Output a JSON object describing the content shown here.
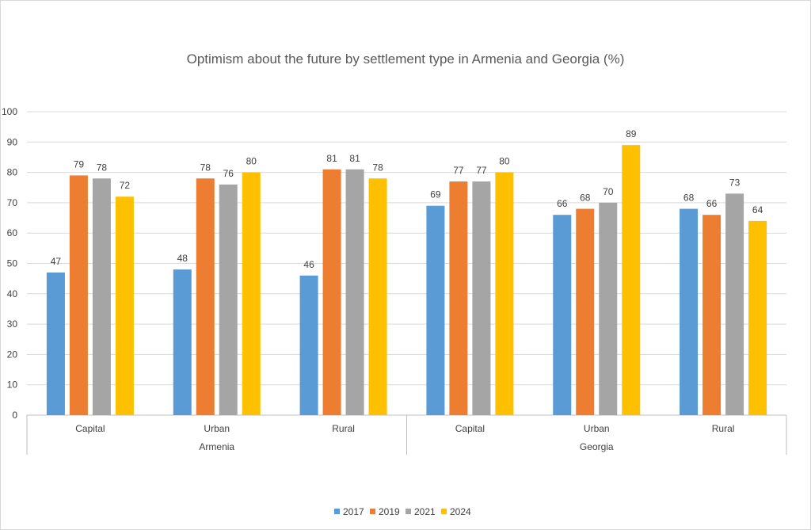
{
  "chart_data": {
    "type": "bar",
    "title": "Optimism about the future by  settlement type in Armenia and Georgia (%)",
    "groups": [
      "Armenia",
      "Georgia"
    ],
    "categories": [
      "Capital",
      "Urban",
      "Rural",
      "Capital",
      "Urban",
      "Rural"
    ],
    "category_groups": [
      "Armenia",
      "Armenia",
      "Armenia",
      "Georgia",
      "Georgia",
      "Georgia"
    ],
    "series": [
      {
        "name": "2017",
        "color": "#5B9BD5",
        "values": [
          47,
          48,
          46,
          69,
          66,
          68
        ]
      },
      {
        "name": "2019",
        "color": "#ED7D31",
        "values": [
          79,
          78,
          81,
          77,
          68,
          66
        ]
      },
      {
        "name": "2021",
        "color": "#A5A5A5",
        "values": [
          78,
          76,
          81,
          77,
          70,
          73
        ]
      },
      {
        "name": "2024",
        "color": "#FFC000",
        "values": [
          72,
          80,
          78,
          80,
          89,
          64
        ]
      }
    ],
    "ylim": [
      0,
      100
    ],
    "yticks": [
      0,
      10,
      20,
      30,
      40,
      50,
      60,
      70,
      80,
      90,
      100
    ],
    "grid": true,
    "legend": "bottom"
  }
}
